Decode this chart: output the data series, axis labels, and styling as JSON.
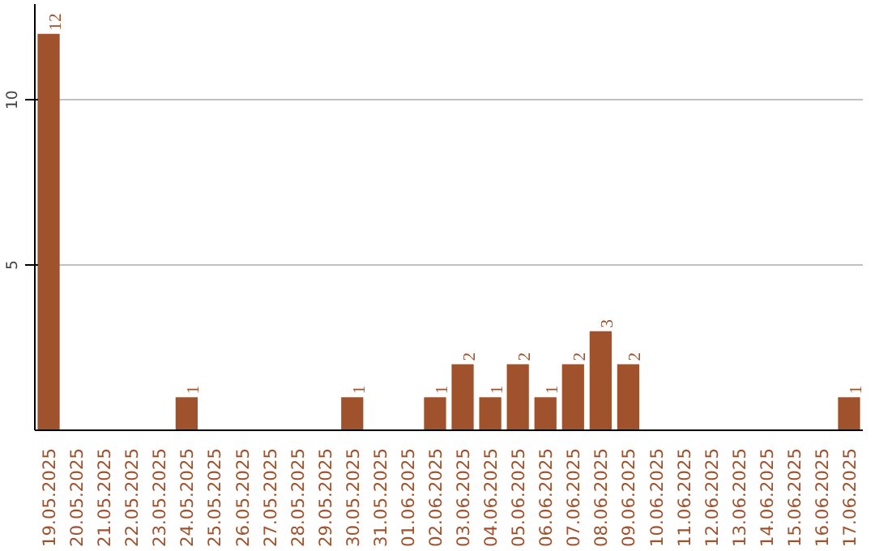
{
  "chart_data": {
    "type": "bar",
    "categories": [
      "19.05.2025",
      "20.05.2025",
      "21.05.2025",
      "22.05.2025",
      "23.05.2025",
      "24.05.2025",
      "25.05.2025",
      "26.05.2025",
      "27.05.2025",
      "28.05.2025",
      "29.05.2025",
      "30.05.2025",
      "31.05.2025",
      "01.06.2025",
      "02.06.2025",
      "03.06.2025",
      "04.06.2025",
      "05.06.2025",
      "06.06.2025",
      "07.06.2025",
      "08.06.2025",
      "09.06.2025",
      "10.06.2025",
      "11.06.2025",
      "12.06.2025",
      "13.06.2025",
      "14.06.2025",
      "15.06.2025",
      "16.06.2025",
      "17.06.2025"
    ],
    "values": [
      12,
      0,
      0,
      0,
      0,
      1,
      0,
      0,
      0,
      0,
      0,
      1,
      0,
      0,
      1,
      2,
      1,
      2,
      1,
      2,
      3,
      2,
      0,
      0,
      0,
      0,
      0,
      0,
      0,
      1
    ],
    "value_labels": [
      "12",
      null,
      null,
      null,
      null,
      "1",
      null,
      null,
      null,
      null,
      null,
      "1",
      null,
      null,
      "1",
      "2",
      "1",
      "2",
      "1",
      "2",
      "3",
      "2",
      null,
      null,
      null,
      null,
      null,
      null,
      null,
      "1"
    ],
    "color": "#a0522d",
    "ylim": [
      0,
      12.9
    ],
    "yticks": [
      5,
      10
    ],
    "grid": "y"
  }
}
